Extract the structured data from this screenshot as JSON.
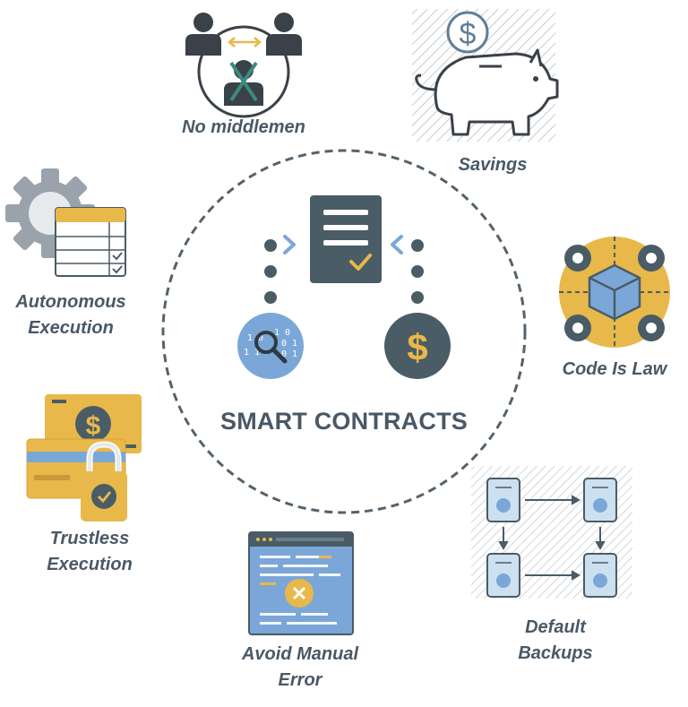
{
  "title": "SMART CONTRACTS",
  "benefits": [
    {
      "id": "no-middlemen",
      "lines": [
        "No middlemen"
      ]
    },
    {
      "id": "savings",
      "lines": [
        "Savings"
      ]
    },
    {
      "id": "autonomous-execution",
      "lines": [
        "Autonomous",
        "Execution"
      ]
    },
    {
      "id": "code-is-law",
      "lines": [
        "Code Is Law"
      ]
    },
    {
      "id": "trustless-execution",
      "lines": [
        "Trustless",
        "Execution"
      ]
    },
    {
      "id": "avoid-manual-error",
      "lines": [
        "Avoid Manual",
        "Error"
      ]
    },
    {
      "id": "default-backups",
      "lines": [
        "Default",
        "Backups"
      ]
    }
  ],
  "center_icon": {
    "dollar_symbol": "$",
    "binary_digits": [
      "1 0",
      "0 1 1",
      "1 0",
      "0 1 1",
      "1 1"
    ]
  },
  "savings_icon": {
    "dollar_symbol": "$"
  },
  "trustless_icon": {
    "dollar_symbol": "$"
  },
  "colors": {
    "text": "#4a5866",
    "slate": "#4a5c66",
    "blue": "#7ba7d8",
    "gold": "#e8b84a",
    "dashed": "#55626b"
  }
}
